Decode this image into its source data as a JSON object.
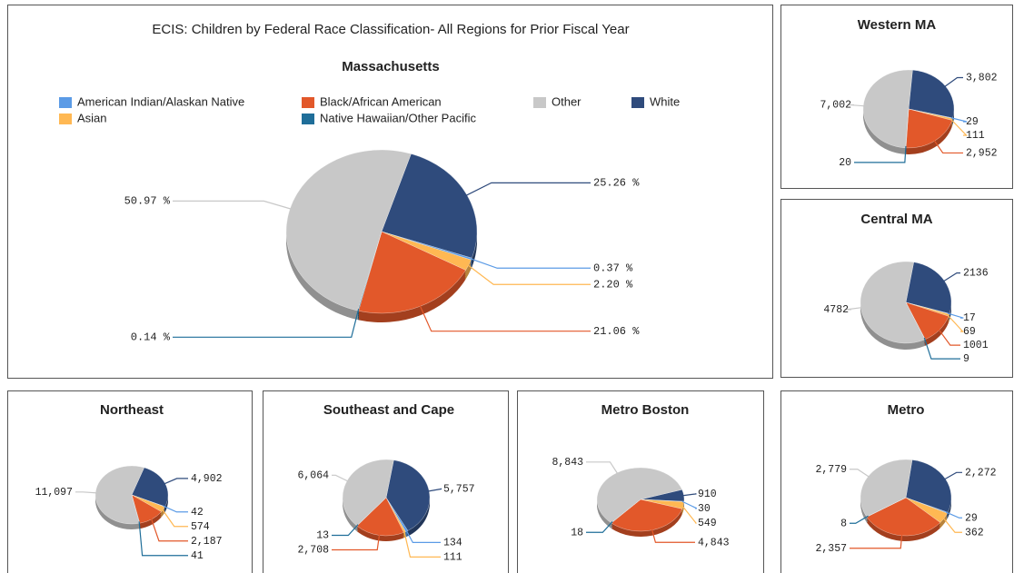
{
  "chart_data": [
    {
      "type": "pie",
      "title": "ECIS: Children by Federal Race Classification- All Regions for Prior Fiscal Year",
      "subtitle": "Massachusetts",
      "categories": [
        "American Indian/Alaskan Native",
        "Asian",
        "Black/African American",
        "Native Hawaiian/Other Pacific",
        "Other",
        "White"
      ],
      "values": [
        0.37,
        2.2,
        21.06,
        0.14,
        50.97,
        25.26
      ],
      "value_labels": [
        "0.37 %",
        "2.20 %",
        "21.06 %",
        "0.14 %",
        "50.97 %",
        "25.26 %"
      ],
      "colors": [
        "#5b9be6",
        "#ffb853",
        "#e2582a",
        "#1f6e99",
        "#c8c8c8",
        "#2f4b7c"
      ],
      "legend": "top"
    },
    {
      "type": "pie",
      "title": "Western MA",
      "values": [
        29,
        111,
        2952,
        20,
        7002,
        3802
      ],
      "value_labels": [
        "29",
        "111",
        "2,952",
        "20",
        "7,002",
        "3,802"
      ],
      "colors": [
        "#5b9be6",
        "#ffb853",
        "#e2582a",
        "#1f6e99",
        "#c8c8c8",
        "#2f4b7c"
      ]
    },
    {
      "type": "pie",
      "title": "Central MA",
      "values": [
        17,
        69,
        1001,
        9,
        4782,
        2136
      ],
      "colors": [
        "#5b9be6",
        "#ffb853",
        "#e2582a",
        "#1f6e99",
        "#c8c8c8",
        "#2f4b7c"
      ]
    },
    {
      "type": "pie",
      "title": "Northeast",
      "values": [
        42,
        574,
        2187,
        41,
        11097,
        4902
      ],
      "value_labels": [
        "42",
        "574",
        "2,187",
        "41",
        "11,097",
        "4,902"
      ],
      "colors": [
        "#5b9be6",
        "#ffb853",
        "#e2582a",
        "#1f6e99",
        "#c8c8c8",
        "#2f4b7c"
      ]
    },
    {
      "type": "pie",
      "title": "Southeast and Cape",
      "values": [
        134,
        111,
        2708,
        13,
        6064,
        5757
      ],
      "value_labels": [
        "134",
        "111",
        "2,708",
        "13",
        "6,064",
        "5,757"
      ],
      "colors": [
        "#5b9be6",
        "#ffb853",
        "#e2582a",
        "#1f6e99",
        "#c8c8c8",
        "#2f4b7c"
      ]
    },
    {
      "type": "pie",
      "title": "Metro Boston",
      "values": [
        30,
        549,
        4843,
        18,
        8843,
        910
      ],
      "value_labels": [
        "30",
        "549",
        "4,843",
        "18",
        "8,843",
        "910"
      ],
      "colors": [
        "#5b9be6",
        "#ffb853",
        "#e2582a",
        "#1f6e99",
        "#c8c8c8",
        "#2f4b7c"
      ]
    },
    {
      "type": "pie",
      "title": "Metro",
      "values": [
        29,
        362,
        2357,
        8,
        2779,
        2272
      ],
      "value_labels": [
        "29",
        "362",
        "2,357",
        "8",
        "2,779",
        "2,272"
      ],
      "colors": [
        "#5b9be6",
        "#ffb853",
        "#e2582a",
        "#1f6e99",
        "#c8c8c8",
        "#2f4b7c"
      ]
    }
  ]
}
